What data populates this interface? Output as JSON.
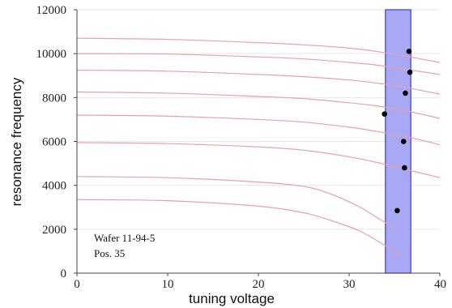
{
  "chart_data": {
    "type": "line",
    "title": "",
    "xlabel": "tuning voltage",
    "ylabel": "resonance frequency",
    "xlim": [
      0,
      40
    ],
    "ylim": [
      0,
      12000
    ],
    "xticks": [
      0,
      10,
      20,
      30,
      40
    ],
    "xtick_labels": [
      "0",
      "10",
      "20",
      "30",
      "40"
    ],
    "yticks": [
      0,
      2000,
      4000,
      6000,
      8000,
      10000,
      12000
    ],
    "ytick_labels": [
      "0",
      "2000",
      "4000",
      "6000",
      "8000",
      "10000",
      "12000"
    ],
    "grid": "horizontal",
    "curve_color": "#e8a0a8",
    "curves": [
      {
        "x": [
          0,
          10,
          20,
          25,
          30,
          33,
          36,
          40
        ],
        "y": [
          10700,
          10650,
          10500,
          10400,
          10250,
          10100,
          9900,
          9600
        ]
      },
      {
        "x": [
          0,
          10,
          20,
          25,
          30,
          33,
          36,
          40
        ],
        "y": [
          10000,
          9980,
          9850,
          9760,
          9600,
          9480,
          9300,
          9050
        ]
      },
      {
        "x": [
          0,
          10,
          20,
          25,
          30,
          33,
          36,
          40
        ],
        "y": [
          9250,
          9200,
          9050,
          8950,
          8800,
          8660,
          8480,
          8150
        ]
      },
      {
        "x": [
          0,
          10,
          20,
          25,
          30,
          33,
          36,
          40
        ],
        "y": [
          8250,
          8200,
          8050,
          7950,
          7760,
          7620,
          7420,
          7050
        ]
      },
      {
        "x": [
          0,
          10,
          20,
          25,
          30,
          33,
          36,
          40
        ],
        "y": [
          7200,
          7150,
          7000,
          6880,
          6650,
          6460,
          6250,
          5850
        ]
      },
      {
        "x": [
          0,
          10,
          20,
          25,
          30,
          33,
          36,
          40
        ],
        "y": [
          5950,
          5900,
          5750,
          5600,
          5300,
          5050,
          4750,
          4350
        ]
      },
      {
        "x": [
          0,
          10,
          20,
          25,
          28,
          31,
          33,
          35
        ],
        "y": [
          4400,
          4350,
          4150,
          3950,
          3600,
          3050,
          2550,
          2050
        ]
      },
      {
        "x": [
          0,
          10,
          20,
          25,
          28,
          31,
          33,
          35.5
        ],
        "y": [
          3350,
          3300,
          3050,
          2750,
          2400,
          1950,
          1500,
          850
        ]
      }
    ],
    "points": [
      {
        "x": 36.6,
        "y": 10100
      },
      {
        "x": 36.7,
        "y": 9150
      },
      {
        "x": 36.2,
        "y": 8200
      },
      {
        "x": 33.9,
        "y": 7250
      },
      {
        "x": 36.0,
        "y": 6000
      },
      {
        "x": 36.1,
        "y": 4800
      },
      {
        "x": 35.3,
        "y": 2850
      }
    ],
    "highlight_band": {
      "x_from": 34.0,
      "x_to": 36.8,
      "color": "#a8a8f5",
      "edge_color": "#3a3ad8"
    },
    "annotation": [
      "Wafer 11-94-5",
      "Pos. 35"
    ]
  }
}
